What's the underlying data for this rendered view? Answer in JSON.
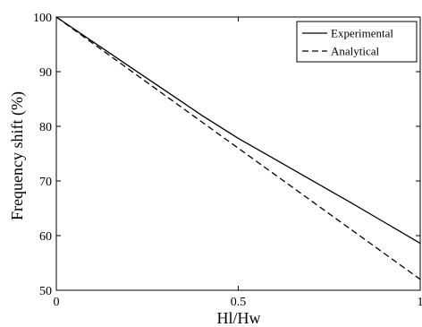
{
  "chart_data": {
    "type": "line",
    "title": "",
    "xlabel": "Hl/Hw",
    "ylabel": "Frequency shift (%)",
    "xlim": [
      0,
      1
    ],
    "ylim": [
      50,
      100
    ],
    "xticks": [
      0,
      0.5,
      1
    ],
    "xtick_labels": [
      "0",
      "0.5",
      "1"
    ],
    "yticks": [
      50,
      60,
      70,
      80,
      90,
      100
    ],
    "ytick_labels": [
      "50",
      "60",
      "70",
      "80",
      "90",
      "100"
    ],
    "grid": false,
    "legend_position": "top-right",
    "series": [
      {
        "name": "Experimental",
        "style": "solid",
        "color": "#000000",
        "x": [
          0,
          0.1,
          0.2,
          0.3,
          0.4,
          0.5,
          0.6,
          0.7,
          0.8,
          0.9,
          1.0
        ],
        "y": [
          100,
          95.5,
          91.0,
          86.5,
          82.0,
          77.8,
          74.0,
          70.2,
          66.4,
          62.5,
          58.6
        ]
      },
      {
        "name": "Analytical",
        "style": "dashed",
        "color": "#000000",
        "x": [
          0,
          0.1,
          0.2,
          0.3,
          0.4,
          0.5,
          0.6,
          0.7,
          0.8,
          0.9,
          1.0
        ],
        "y": [
          100,
          95.2,
          90.4,
          85.6,
          80.8,
          76.0,
          71.2,
          66.4,
          61.6,
          56.8,
          52.0
        ]
      }
    ]
  }
}
